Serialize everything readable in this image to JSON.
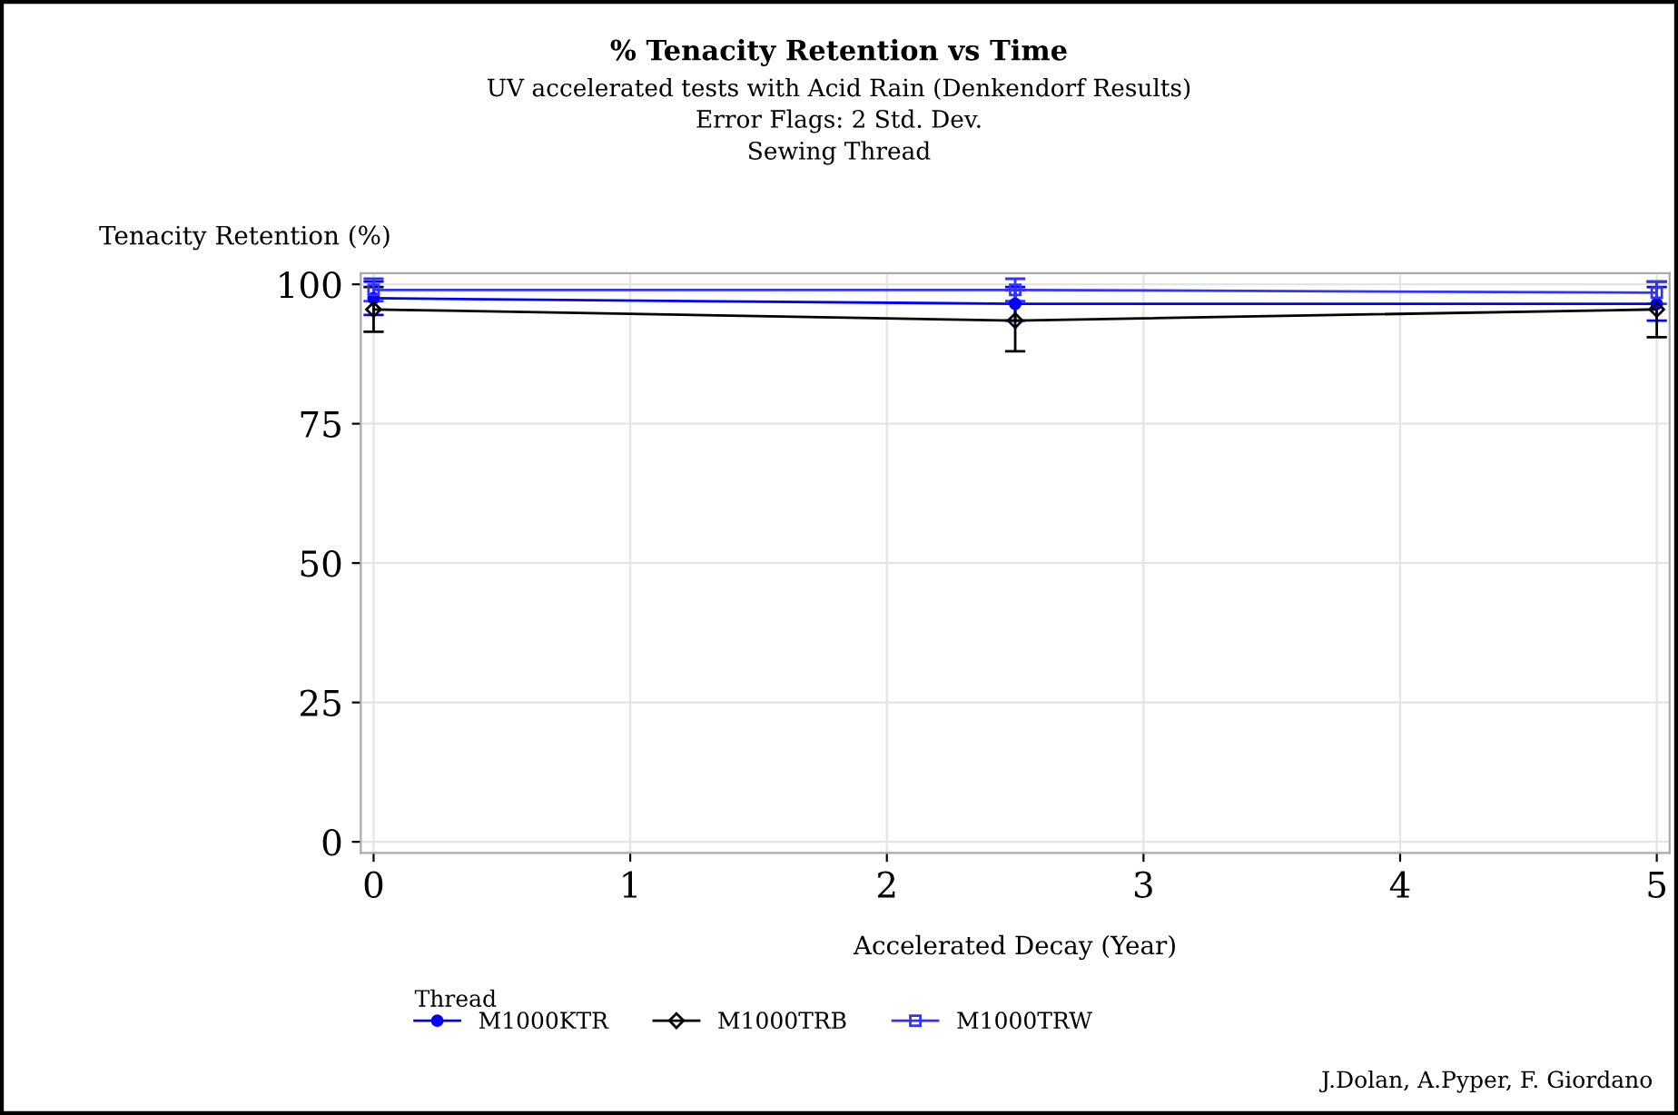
{
  "chart_data": {
    "type": "line",
    "title": "% Tenacity Retention vs Time",
    "subtitle": "UV accelerated tests with Acid Rain (Denkendorf Results)\nError Flags: 2 Std. Dev.\nSewing Thread",
    "xlabel": "Accelerated Decay (Year)",
    "ylabel": "Tenacity Retention (%)",
    "legend_title": "Thread",
    "x": [
      0,
      2.5,
      5
    ],
    "series": [
      {
        "name": "M1000KTR",
        "color": "#0000ff",
        "marker": "circle",
        "values": [
          97.5,
          96.5,
          96.5
        ],
        "errors": [
          3,
          3,
          3
        ]
      },
      {
        "name": "M1000TRB",
        "color": "#000000",
        "marker": "diamond",
        "values": [
          95.5,
          93.5,
          95.5
        ],
        "errors": [
          4,
          5.5,
          5
        ]
      },
      {
        "name": "M1000TRW",
        "color": "#3333ff",
        "marker": "square",
        "values": [
          99,
          99,
          98.5
        ],
        "errors": [
          2,
          2,
          2
        ]
      }
    ],
    "xlim": [
      -0.05,
      5.05
    ],
    "xticks": [
      0,
      1,
      2,
      3,
      4,
      5
    ],
    "ylim": [
      -2,
      102
    ],
    "yticks": [
      0,
      25,
      50,
      75,
      100
    ],
    "grid": true,
    "legend": "bottom",
    "annotations": [
      "J.Dolan, A.Pyper, F. Giordano"
    ]
  }
}
